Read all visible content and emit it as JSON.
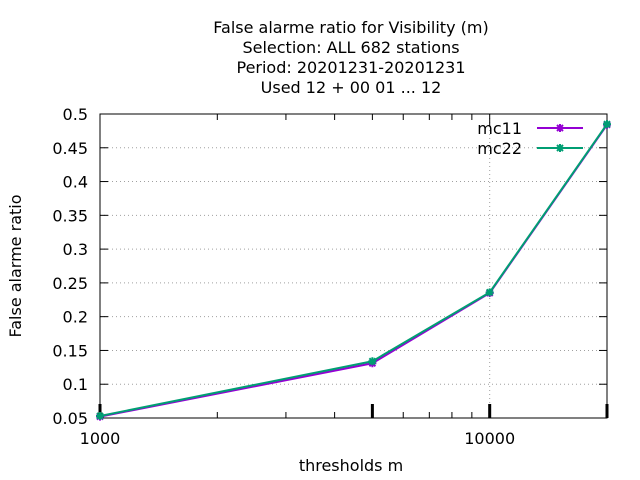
{
  "chart_data": {
    "type": "line",
    "title_lines": [
      "False alarme ratio  for Visibility (m)",
      "Selection: ALL    682 stations",
      "Period: 20201231-20201231",
      "Used  12 + 00 01 ... 12"
    ],
    "xlabel": "thresholds m",
    "ylabel": "False alarme ratio",
    "x_scale": "log",
    "xlim": [
      1000,
      20000
    ],
    "ylim": [
      0.05,
      0.5
    ],
    "x_ticks": [
      1000,
      10000
    ],
    "x_tick_labels": [
      "1000",
      "10000"
    ],
    "y_ticks": [
      0.05,
      0.1,
      0.15,
      0.2,
      0.25,
      0.3,
      0.35,
      0.4,
      0.45,
      0.5
    ],
    "y_tick_labels": [
      "0.05",
      "0.1",
      "0.15",
      "0.2",
      "0.25",
      "0.3",
      "0.35",
      "0.4",
      "0.45",
      "0.5"
    ],
    "grid": true,
    "legend_position": "top-right",
    "x": [
      1000,
      5000,
      10000,
      20000
    ],
    "series": [
      {
        "name": "mc11",
        "color": "#9400d3",
        "values": [
          0.052,
          0.131,
          0.235,
          0.484
        ]
      },
      {
        "name": "mc22",
        "color": "#009e73",
        "values": [
          0.053,
          0.134,
          0.236,
          0.485
        ]
      }
    ]
  }
}
